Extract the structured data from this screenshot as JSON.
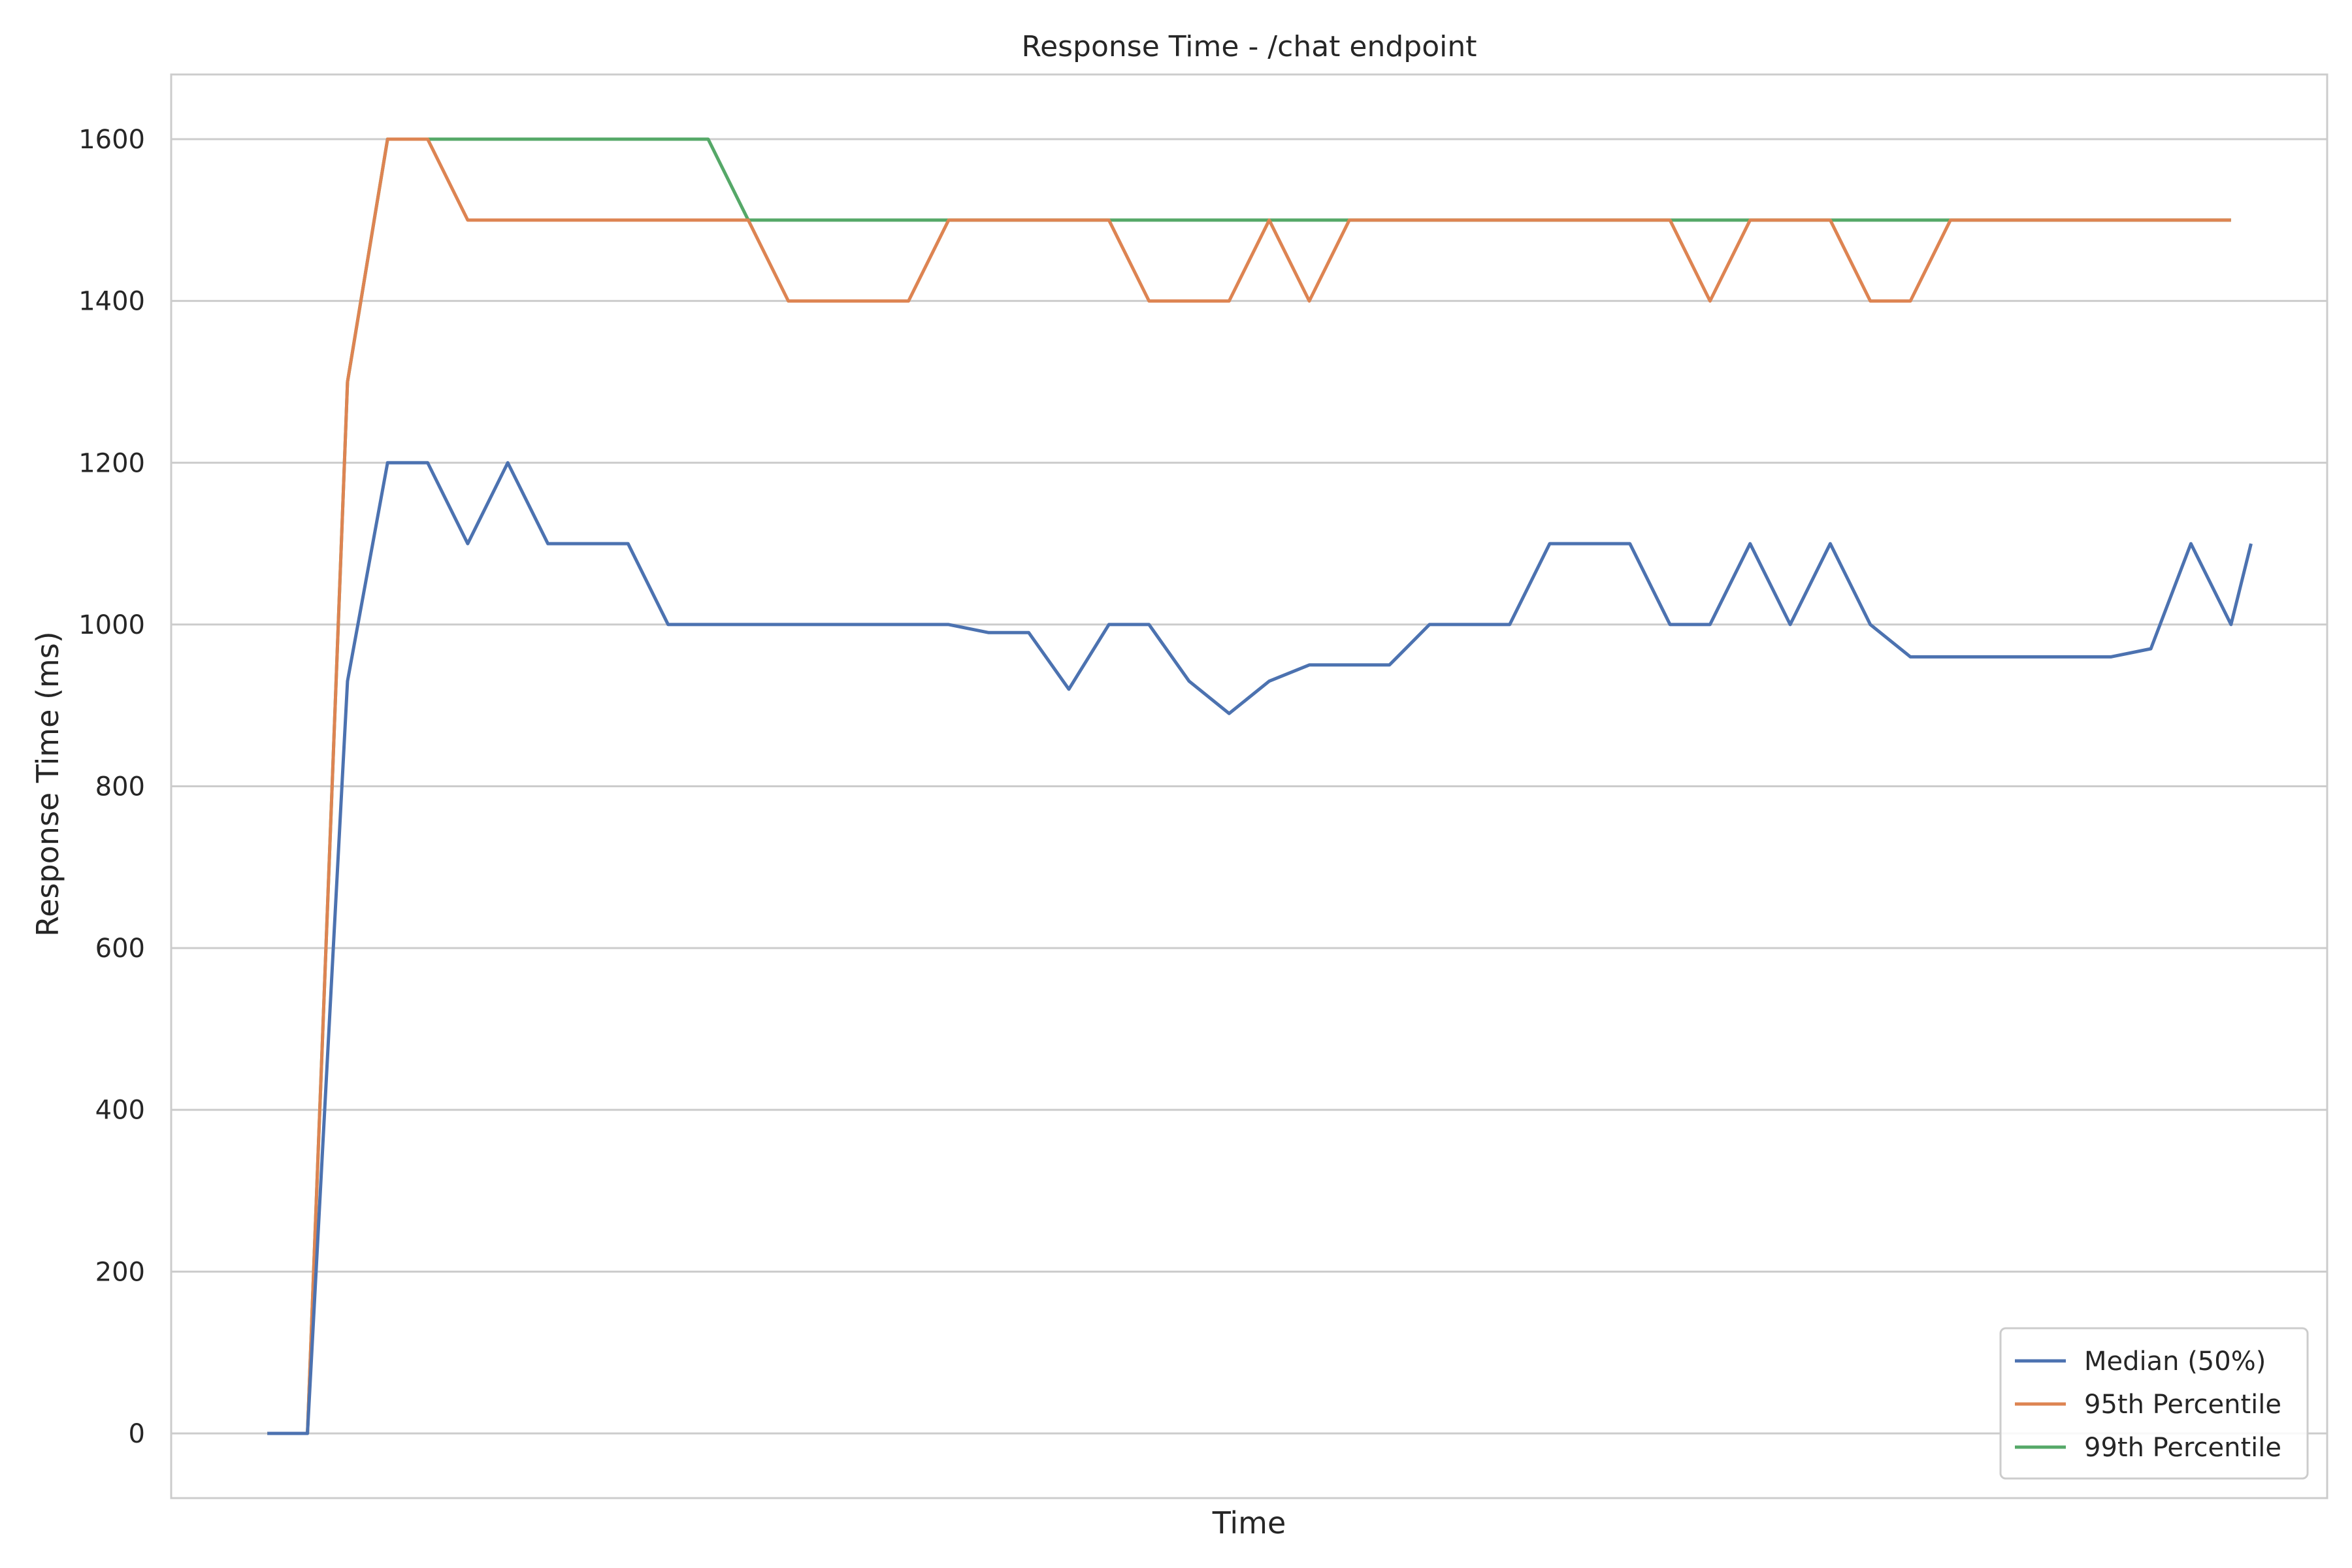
{
  "chart_data": {
    "type": "line",
    "title": "Response Time - /chat endpoint",
    "xlabel": "Time",
    "ylabel": "Response Time (ms)",
    "ylim": [
      -80,
      1680
    ],
    "xlim": [
      -2.4,
      51.4
    ],
    "yticks": [
      0,
      200,
      400,
      600,
      800,
      1000,
      1200,
      1400,
      1600
    ],
    "ytick_labels": [
      "0",
      "200",
      "400",
      "600",
      "800",
      "1000",
      "1200",
      "1400",
      "1600"
    ],
    "grid": "horizontal",
    "legend_position": "lower-right",
    "x": [
      0,
      1,
      2,
      3,
      4,
      5,
      6,
      7,
      8,
      9,
      10,
      11,
      12,
      13,
      14,
      15,
      16,
      17,
      18,
      19,
      20,
      21,
      22,
      23,
      24,
      25,
      26,
      27,
      28,
      29,
      30,
      31,
      32,
      33,
      34,
      35,
      36,
      37,
      38,
      39,
      40,
      41,
      42,
      43,
      44,
      45,
      46,
      47,
      48,
      49
    ],
    "series": [
      {
        "name": "Median (50%)",
        "color": "#4c72b0",
        "values": [
          0,
          0,
          930,
          1200,
          1200,
          1100,
          1200,
          1100,
          1100,
          1100,
          1000,
          1000,
          1000,
          1000,
          1000,
          1000,
          1000,
          1000,
          990,
          990,
          920,
          1000,
          1000,
          930,
          890,
          930,
          950,
          950,
          950,
          1000,
          1000,
          1000,
          1100,
          1100,
          1100,
          1000,
          1000,
          1100,
          1000,
          1100,
          1000,
          960,
          960,
          960,
          960,
          960,
          960,
          970,
          1100,
          1000
        ]
      },
      {
        "name": "95th Percentile",
        "color": "#dd8452",
        "values": [
          0,
          0,
          1300,
          1600,
          1600,
          1500,
          1500,
          1500,
          1500,
          1500,
          1500,
          1500,
          1500,
          1400,
          1400,
          1400,
          1400,
          1500,
          1500,
          1500,
          1500,
          1500,
          1400,
          1400,
          1400,
          1500,
          1400,
          1500,
          1500,
          1500,
          1500,
          1500,
          1500,
          1500,
          1500,
          1500,
          1400,
          1500,
          1500,
          1500,
          1400,
          1400,
          1500,
          1500,
          1500,
          1500,
          1500,
          1500,
          1500,
          1500
        ]
      },
      {
        "name": "99th Percentile",
        "color": "#55a868",
        "values": [
          0,
          0,
          1300,
          1600,
          1600,
          1600,
          1600,
          1600,
          1600,
          1600,
          1600,
          1600,
          1500,
          1500,
          1500,
          1500,
          1500,
          1500,
          1500,
          1500,
          1500,
          1500,
          1500,
          1500,
          1500,
          1500,
          1500,
          1500,
          1500,
          1500,
          1500,
          1500,
          1500,
          1500,
          1500,
          1500,
          1500,
          1500,
          1500,
          1500,
          1500,
          1500,
          1500,
          1500,
          1500,
          1500,
          1500,
          1500,
          1500,
          1500
        ]
      }
    ],
    "median_tail": [
      1100,
      1100
    ]
  }
}
